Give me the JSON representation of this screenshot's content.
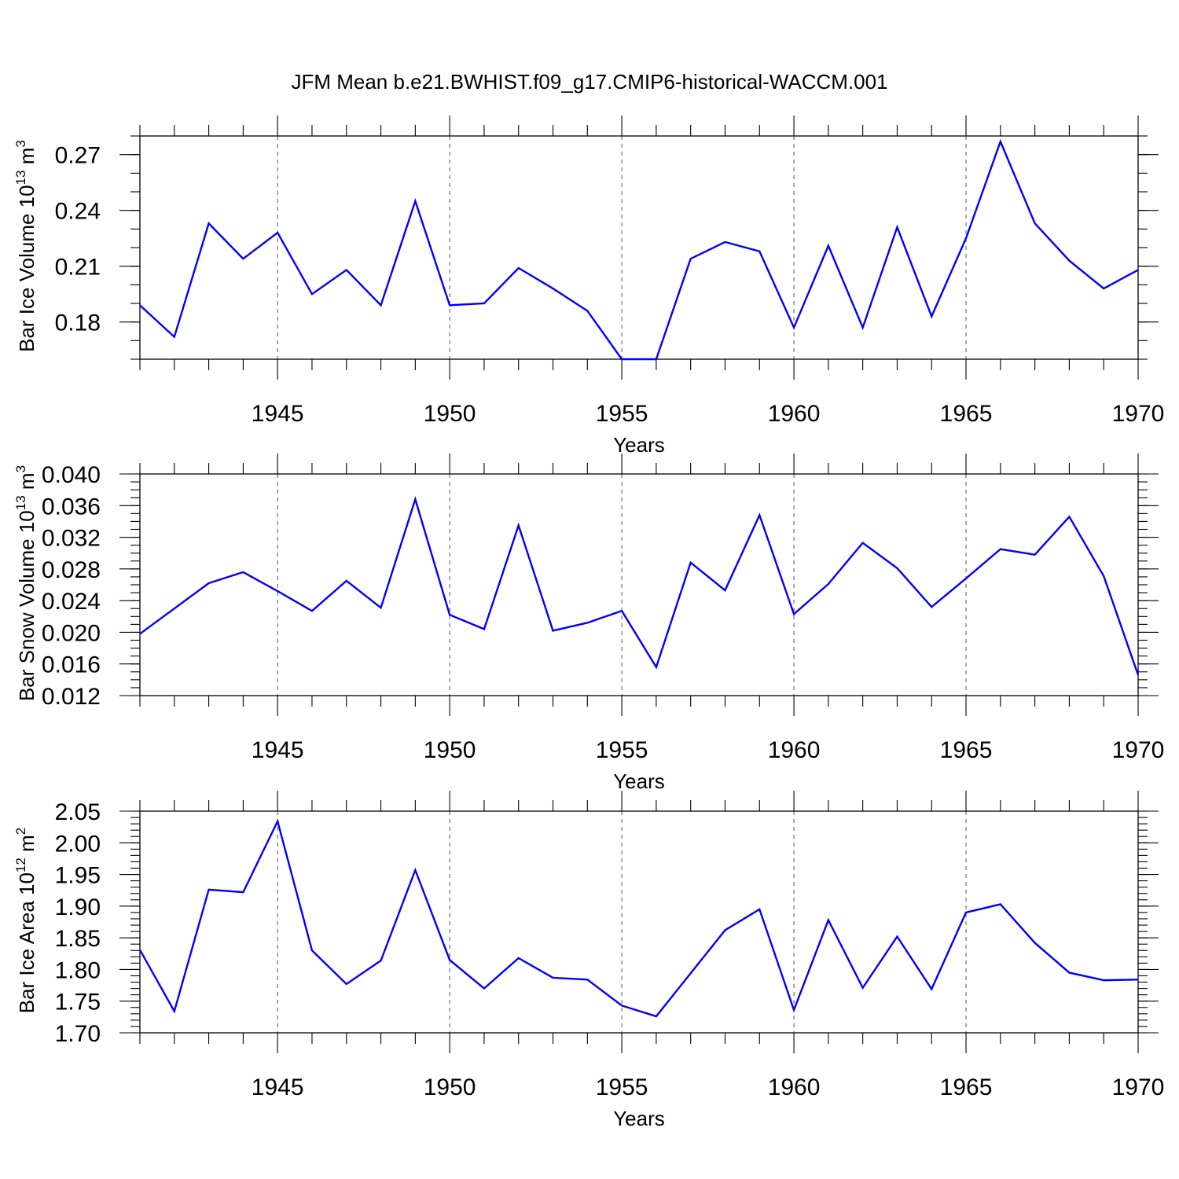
{
  "title": "JFM Mean b.e21.BWHIST.f09_g17.CMIP6-historical-WACCM.001",
  "colors": {
    "line": "#0000ff",
    "axis": "#000000",
    "grid": "#555555"
  },
  "chart_data": [
    {
      "type": "line",
      "xlabel": "Years",
      "ylabel_text": "Bar Ice Volume 10",
      "ylabel_exp": "13",
      "ylabel_unit": " m",
      "ylabel_unit_exp": "3",
      "xlim": [
        1941,
        1970
      ],
      "ylim": [
        0.16,
        0.28
      ],
      "x_ticks": [
        1945,
        1950,
        1955,
        1960,
        1965,
        1970
      ],
      "x_tick_labels": [
        "1945",
        "1950",
        "1955",
        "1960",
        "1965",
        "1970"
      ],
      "y_ticks": [
        0.18,
        0.21,
        0.24,
        0.27
      ],
      "y_tick_labels": [
        "0.18",
        "0.21",
        "0.24",
        "0.27"
      ],
      "y_minor_step": 0.01,
      "grid": "vertical dashed at major x ticks",
      "series": [
        {
          "name": "Bar Ice Volume",
          "x": [
            1941,
            1942,
            1943,
            1944,
            1945,
            1946,
            1947,
            1948,
            1949,
            1950,
            1951,
            1952,
            1953,
            1954,
            1955,
            1956,
            1957,
            1958,
            1959,
            1960,
            1961,
            1962,
            1963,
            1964,
            1965,
            1966,
            1967,
            1968,
            1969,
            1970
          ],
          "values": [
            0.189,
            0.172,
            0.233,
            0.214,
            0.228,
            0.195,
            0.208,
            0.189,
            0.245,
            0.189,
            0.19,
            0.209,
            0.198,
            0.186,
            0.16,
            0.16,
            0.214,
            0.223,
            0.218,
            0.177,
            0.221,
            0.177,
            0.231,
            0.183,
            0.225,
            0.277,
            0.233,
            0.213,
            0.198,
            0.208
          ]
        }
      ]
    },
    {
      "type": "line",
      "xlabel": "Years",
      "ylabel_text": "Bar Snow Volume 10",
      "ylabel_exp": "13",
      "ylabel_unit": " m",
      "ylabel_unit_exp": "3",
      "xlim": [
        1941,
        1970
      ],
      "ylim": [
        0.012,
        0.04
      ],
      "x_ticks": [
        1945,
        1950,
        1955,
        1960,
        1965,
        1970
      ],
      "x_tick_labels": [
        "1945",
        "1950",
        "1955",
        "1960",
        "1965",
        "1970"
      ],
      "y_ticks": [
        0.012,
        0.016,
        0.02,
        0.024,
        0.028,
        0.032,
        0.036,
        0.04
      ],
      "y_tick_labels": [
        "0.012",
        "0.016",
        "0.020",
        "0.024",
        "0.028",
        "0.032",
        "0.036",
        "0.040"
      ],
      "y_minor_step": 0.001,
      "grid": "vertical dashed at major x ticks",
      "series": [
        {
          "name": "Bar Snow Volume",
          "x": [
            1941,
            1942,
            1943,
            1944,
            1945,
            1946,
            1947,
            1948,
            1949,
            1950,
            1951,
            1952,
            1953,
            1954,
            1955,
            1956,
            1957,
            1958,
            1959,
            1960,
            1961,
            1962,
            1963,
            1964,
            1965,
            1966,
            1967,
            1968,
            1969,
            1970
          ],
          "values": [
            0.0198,
            0.023,
            0.0262,
            0.0276,
            0.0252,
            0.0227,
            0.0265,
            0.0231,
            0.0368,
            0.0222,
            0.0204,
            0.0335,
            0.0202,
            0.0212,
            0.0227,
            0.0156,
            0.0288,
            0.0253,
            0.0348,
            0.0223,
            0.0261,
            0.0313,
            0.0281,
            0.0232,
            0.0268,
            0.0305,
            0.0298,
            0.0346,
            0.0271,
            0.0146
          ]
        }
      ]
    },
    {
      "type": "line",
      "xlabel": "Years",
      "ylabel_text": "Bar Ice Area 10",
      "ylabel_exp": "12",
      "ylabel_unit": " m",
      "ylabel_unit_exp": "2",
      "xlim": [
        1941,
        1970
      ],
      "ylim": [
        1.7,
        2.05
      ],
      "x_ticks": [
        1945,
        1950,
        1955,
        1960,
        1965,
        1970
      ],
      "x_tick_labels": [
        "1945",
        "1950",
        "1955",
        "1960",
        "1965",
        "1970"
      ],
      "y_ticks": [
        1.7,
        1.75,
        1.8,
        1.85,
        1.9,
        1.95,
        2.0,
        2.05
      ],
      "y_tick_labels": [
        "1.70",
        "1.75",
        "1.80",
        "1.85",
        "1.90",
        "1.95",
        "2.00",
        "2.05"
      ],
      "y_minor_step": 0.01,
      "grid": "vertical dashed at major x ticks",
      "series": [
        {
          "name": "Bar Ice Area",
          "x": [
            1941,
            1942,
            1943,
            1944,
            1945,
            1946,
            1947,
            1948,
            1949,
            1950,
            1951,
            1952,
            1953,
            1954,
            1955,
            1956,
            1957,
            1958,
            1959,
            1960,
            1961,
            1962,
            1963,
            1964,
            1965,
            1966,
            1967,
            1968,
            1969,
            1970
          ],
          "values": [
            1.831,
            1.734,
            1.926,
            1.922,
            2.034,
            1.83,
            1.777,
            1.814,
            1.957,
            1.815,
            1.77,
            1.818,
            1.787,
            1.784,
            1.743,
            1.726,
            1.794,
            1.862,
            1.895,
            1.736,
            1.878,
            1.771,
            1.852,
            1.769,
            1.89,
            1.903,
            1.842,
            1.795,
            1.783,
            1.784
          ]
        }
      ]
    }
  ]
}
